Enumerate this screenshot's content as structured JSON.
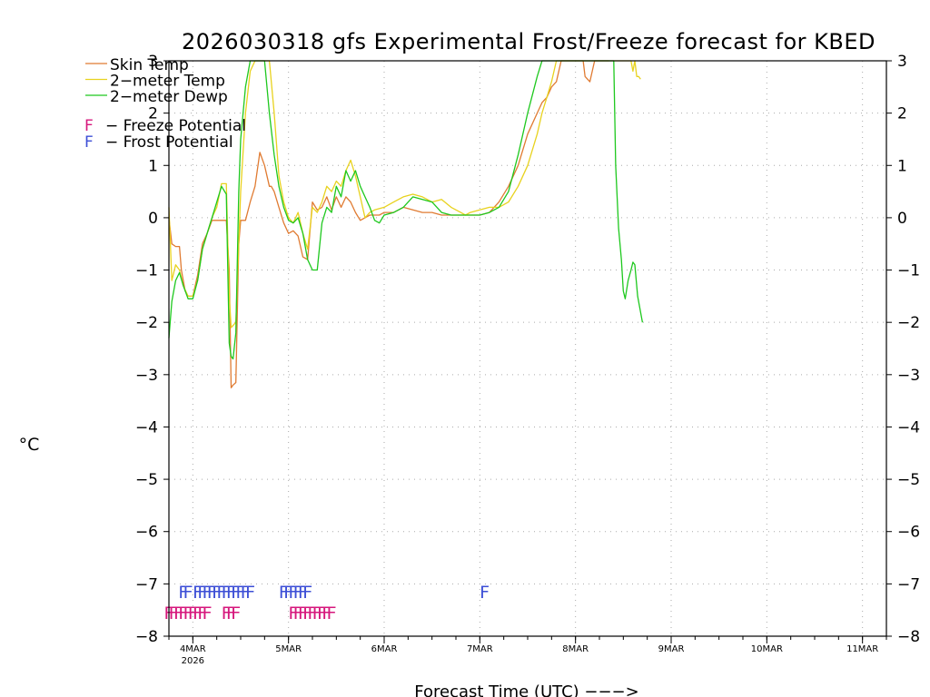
{
  "chart_data": {
    "type": "line",
    "title": "2026030318 gfs Experimental Frost/Freeze forecast for KBED",
    "ylabel": "°C",
    "xlabel": "Forecast Time (UTC) --->",
    "ylim": [
      -8,
      3
    ],
    "xlim": [
      -0.25,
      7.25
    ],
    "y_ticks": [
      -8,
      -7,
      -6,
      -5,
      -4,
      -3,
      -2,
      -1,
      0,
      1,
      2,
      3
    ],
    "y_tick_labels": [
      "−8",
      "−7",
      "−6",
      "−5",
      "−4",
      "−3",
      "−2",
      "−1",
      "0",
      "1",
      "2",
      "3"
    ],
    "x_ticks": [
      {
        "x": 0,
        "label": "4MAR",
        "sublabel": "2026"
      },
      {
        "x": 1,
        "label": "5MAR",
        "sublabel": ""
      },
      {
        "x": 2,
        "label": "6MAR",
        "sublabel": ""
      },
      {
        "x": 3,
        "label": "7MAR",
        "sublabel": ""
      },
      {
        "x": 4,
        "label": "8MAR",
        "sublabel": ""
      },
      {
        "x": 5,
        "label": "9MAR",
        "sublabel": ""
      },
      {
        "x": 6,
        "label": "10MAR",
        "sublabel": ""
      },
      {
        "x": 7,
        "label": "11MAR",
        "sublabel": ""
      }
    ],
    "grid": true,
    "legend_placement": "top-left",
    "series": [
      {
        "name": "Skin Temp",
        "color": "#e07b32",
        "x": [
          -0.25,
          -0.22,
          -0.18,
          -0.14,
          -0.12,
          -0.08,
          -0.05,
          0.0,
          0.05,
          0.1,
          0.15,
          0.2,
          0.25,
          0.3,
          0.35,
          0.38,
          0.4,
          0.42,
          0.45,
          0.48,
          0.5,
          0.55,
          0.6,
          0.65,
          0.7,
          0.75,
          0.8,
          0.82,
          0.85,
          0.9,
          0.95,
          1.0,
          1.05,
          1.1,
          1.15,
          1.2,
          1.25,
          1.3,
          1.35,
          1.4,
          1.45,
          1.5,
          1.55,
          1.6,
          1.65,
          1.7,
          1.75,
          1.8,
          1.85,
          1.9,
          1.95,
          2.0,
          2.05,
          2.1,
          2.15,
          2.2,
          2.3,
          2.4,
          2.5,
          2.6,
          2.7,
          2.8,
          2.85,
          2.9,
          3.0,
          3.1,
          3.2,
          3.3,
          3.4,
          3.5,
          3.6,
          3.65,
          3.7,
          3.75,
          3.8,
          3.85,
          3.9,
          3.95,
          4.0,
          4.05,
          4.08,
          4.1,
          4.15,
          4.2,
          4.25,
          4.3,
          4.35
        ],
        "y": [
          0.0,
          -0.5,
          -0.55,
          -0.55,
          -1.0,
          -1.4,
          -1.5,
          -1.5,
          -1.1,
          -0.5,
          -0.3,
          -0.05,
          -0.05,
          -0.05,
          -0.05,
          -1.0,
          -3.25,
          -3.2,
          -3.15,
          -0.5,
          -0.05,
          -0.05,
          0.3,
          0.6,
          1.25,
          1.0,
          0.6,
          0.6,
          0.5,
          0.2,
          -0.1,
          -0.3,
          -0.25,
          -0.35,
          -0.75,
          -0.8,
          0.3,
          0.15,
          0.2,
          0.4,
          0.15,
          0.4,
          0.2,
          0.4,
          0.3,
          0.1,
          -0.05,
          0.0,
          0.05,
          0.05,
          0.05,
          0.1,
          0.1,
          0.1,
          0.15,
          0.2,
          0.15,
          0.1,
          0.1,
          0.05,
          0.05,
          0.05,
          0.05,
          0.05,
          0.05,
          0.1,
          0.3,
          0.6,
          1.0,
          1.6,
          2.0,
          2.2,
          2.3,
          2.5,
          2.6,
          3.0,
          3.0,
          3.0,
          3.0,
          3.0,
          3.0,
          2.7,
          2.6,
          3.0,
          3.0,
          3.0,
          3.0
        ]
      },
      {
        "name": "2-meter Temp",
        "color": "#e8d21e",
        "x": [
          -0.25,
          -0.22,
          -0.18,
          -0.14,
          -0.1,
          -0.05,
          0.0,
          0.05,
          0.1,
          0.15,
          0.2,
          0.25,
          0.3,
          0.35,
          0.38,
          0.4,
          0.45,
          0.5,
          0.55,
          0.6,
          0.65,
          0.7,
          0.75,
          0.8,
          0.85,
          0.9,
          0.95,
          1.0,
          1.05,
          1.1,
          1.15,
          1.2,
          1.25,
          1.3,
          1.35,
          1.4,
          1.45,
          1.5,
          1.55,
          1.6,
          1.65,
          1.7,
          1.75,
          1.8,
          1.85,
          1.9,
          2.0,
          2.1,
          2.2,
          2.3,
          2.4,
          2.5,
          2.6,
          2.7,
          2.8,
          2.85,
          2.9,
          3.0,
          3.1,
          3.2,
          3.3,
          3.4,
          3.5,
          3.6,
          3.65,
          3.7,
          3.75,
          3.8,
          3.85,
          3.9,
          3.95,
          4.0,
          4.1,
          4.2,
          4.3,
          4.4,
          4.5,
          4.55,
          4.58,
          4.6,
          4.62,
          4.64,
          4.66,
          4.68
        ],
        "y": [
          0.2,
          -1.2,
          -0.9,
          -1.0,
          -1.3,
          -1.5,
          -1.5,
          -1.2,
          -0.6,
          -0.3,
          0.0,
          0.2,
          0.65,
          0.65,
          -1.5,
          -2.1,
          -2.0,
          0.5,
          2.0,
          2.8,
          3.0,
          3.0,
          3.0,
          3.0,
          2.0,
          0.8,
          0.3,
          0.0,
          -0.1,
          0.1,
          -0.3,
          -0.6,
          0.2,
          0.1,
          0.3,
          0.6,
          0.5,
          0.7,
          0.6,
          0.9,
          1.1,
          0.8,
          0.4,
          0.0,
          0.1,
          0.15,
          0.2,
          0.3,
          0.4,
          0.45,
          0.4,
          0.3,
          0.35,
          0.2,
          0.1,
          0.05,
          0.1,
          0.15,
          0.2,
          0.2,
          0.3,
          0.6,
          1.0,
          1.6,
          2.0,
          2.3,
          2.6,
          3.0,
          3.0,
          3.0,
          3.0,
          3.0,
          3.0,
          3.0,
          3.0,
          3.0,
          3.0,
          3.0,
          3.0,
          2.8,
          3.0,
          2.7,
          2.7,
          2.65
        ]
      },
      {
        "name": "2-meter Dewp",
        "color": "#1ec81e",
        "x": [
          -0.25,
          -0.22,
          -0.18,
          -0.14,
          -0.1,
          -0.05,
          0.0,
          0.05,
          0.1,
          0.15,
          0.2,
          0.25,
          0.3,
          0.35,
          0.38,
          0.4,
          0.42,
          0.45,
          0.48,
          0.5,
          0.55,
          0.6,
          0.65,
          0.7,
          0.75,
          0.8,
          0.85,
          0.9,
          0.95,
          1.0,
          1.05,
          1.1,
          1.15,
          1.2,
          1.25,
          1.3,
          1.35,
          1.4,
          1.45,
          1.5,
          1.55,
          1.6,
          1.65,
          1.7,
          1.75,
          1.8,
          1.85,
          1.9,
          1.95,
          2.0,
          2.1,
          2.2,
          2.3,
          2.4,
          2.5,
          2.6,
          2.7,
          2.8,
          2.9,
          3.0,
          3.1,
          3.2,
          3.3,
          3.4,
          3.5,
          3.6,
          3.65,
          3.7,
          3.75,
          3.8,
          3.85,
          3.9,
          3.95,
          4.0,
          4.05,
          4.1,
          4.15,
          4.2,
          4.25,
          4.3,
          4.35,
          4.4,
          4.42,
          4.45,
          4.48,
          4.5,
          4.52,
          4.55,
          4.58,
          4.6,
          4.62,
          4.65,
          4.7
        ],
        "y": [
          -2.3,
          -1.6,
          -1.2,
          -1.05,
          -1.3,
          -1.55,
          -1.55,
          -1.2,
          -0.6,
          -0.3,
          0.0,
          0.3,
          0.6,
          0.45,
          -2.4,
          -2.65,
          -2.7,
          -2.2,
          0.5,
          1.5,
          2.5,
          3.0,
          3.0,
          3.0,
          3.0,
          2.0,
          1.2,
          0.6,
          0.2,
          -0.05,
          -0.1,
          0.0,
          -0.3,
          -0.8,
          -1.0,
          -1.0,
          -0.1,
          0.2,
          0.1,
          0.6,
          0.4,
          0.9,
          0.7,
          0.9,
          0.6,
          0.4,
          0.2,
          -0.05,
          -0.1,
          0.05,
          0.1,
          0.2,
          0.4,
          0.35,
          0.3,
          0.1,
          0.05,
          0.05,
          0.05,
          0.05,
          0.1,
          0.2,
          0.5,
          1.2,
          2.0,
          2.7,
          3.0,
          3.0,
          3.0,
          3.0,
          3.0,
          3.0,
          3.0,
          3.0,
          3.0,
          3.0,
          3.0,
          3.0,
          3.0,
          3.0,
          3.0,
          3.0,
          1.0,
          -0.2,
          -0.8,
          -1.4,
          -1.55,
          -1.2,
          -1.0,
          -0.85,
          -0.9,
          -1.5,
          -2.0
        ]
      }
    ],
    "freeze_potential": {
      "name": "Freeze Potential",
      "symbol": "F",
      "color": "#d6177c",
      "y": -7.5,
      "x": [
        -0.25,
        -0.2,
        -0.15,
        -0.1,
        -0.05,
        0.0,
        0.05,
        0.1,
        0.15,
        0.35,
        0.4,
        0.45,
        1.05,
        1.1,
        1.15,
        1.2,
        1.25,
        1.3,
        1.35,
        1.4,
        1.45
      ]
    },
    "frost_potential": {
      "name": "Frost Potential",
      "symbol": "F",
      "color": "#3d4fd6",
      "y": -7.1,
      "x": [
        -0.1,
        -0.05,
        0.05,
        0.1,
        0.15,
        0.2,
        0.25,
        0.3,
        0.35,
        0.4,
        0.45,
        0.5,
        0.55,
        0.6,
        0.95,
        1.0,
        1.05,
        1.1,
        1.15,
        1.2,
        3.05
      ]
    },
    "legend_entries": [
      {
        "label": "Skin Temp",
        "color": "#e07b32"
      },
      {
        "label": "2−meter Temp",
        "color": "#e8d21e"
      },
      {
        "label": "2−meter Dewp",
        "color": "#1ec81e"
      }
    ],
    "marker_legend": [
      {
        "symbol": "F",
        "label": "− Freeze Potential",
        "color": "#d6177c"
      },
      {
        "symbol": "F",
        "label": "− Frost Potential",
        "color": "#3d4fd6"
      }
    ],
    "unit_label": "°C",
    "xlabel_display": "Forecast Time (UTC) −−−>"
  }
}
